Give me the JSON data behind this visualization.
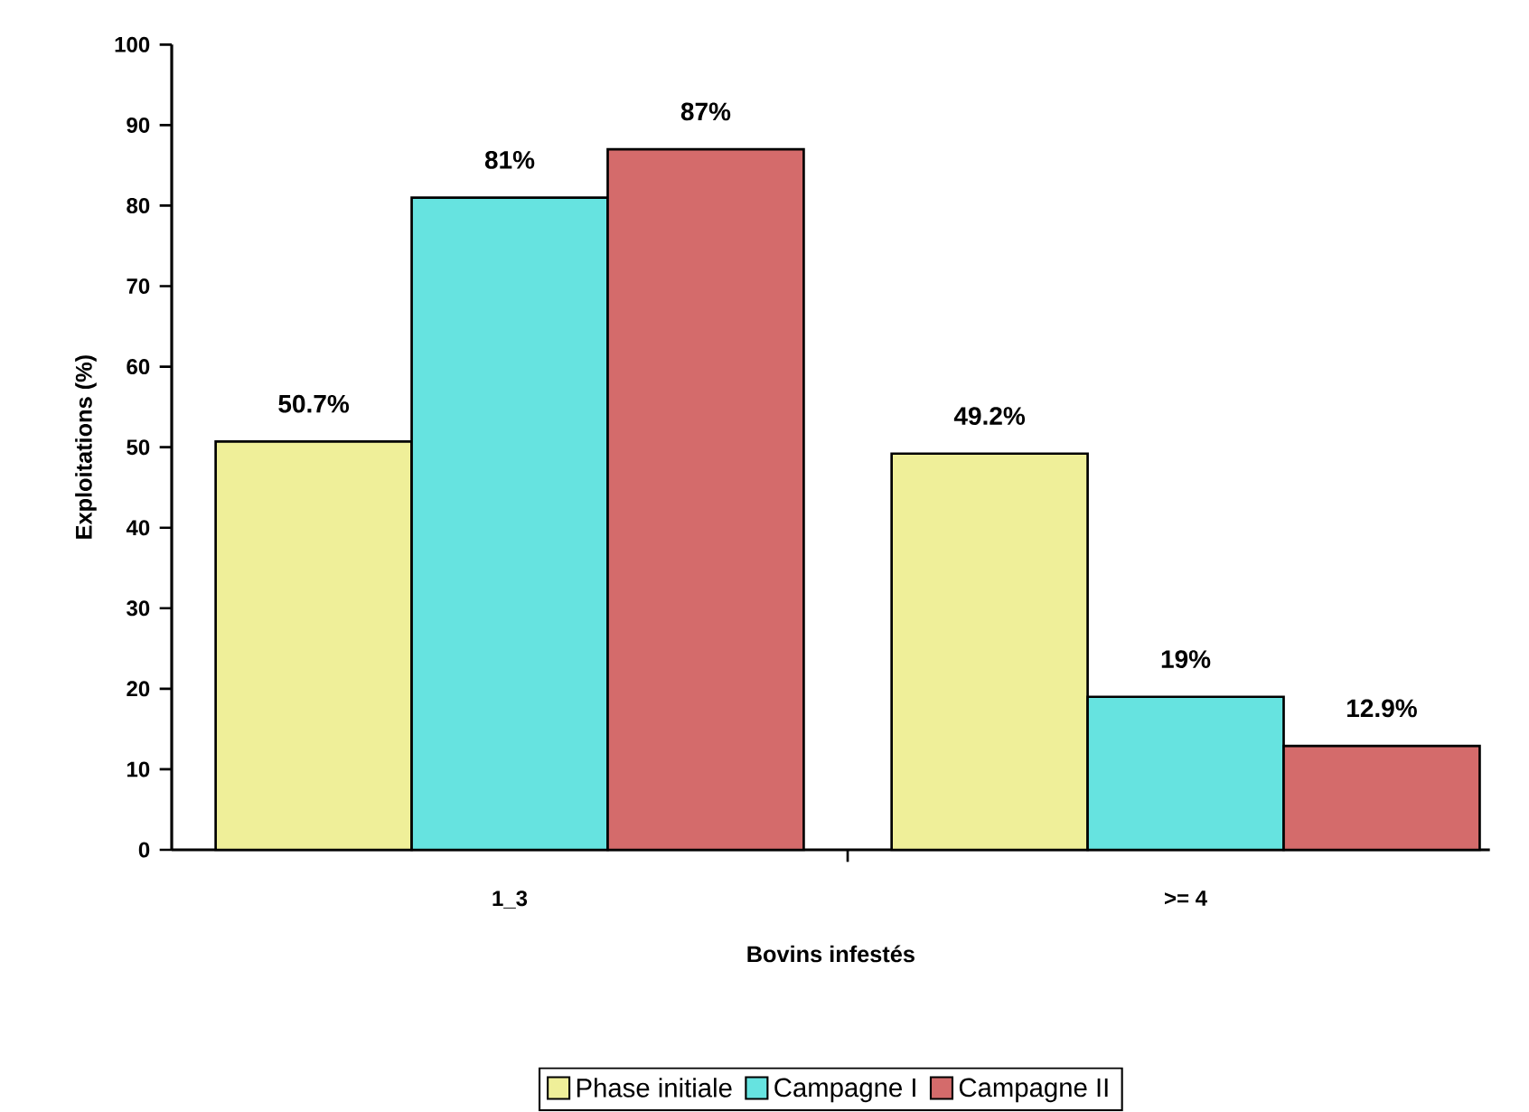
{
  "chart_data": {
    "type": "bar",
    "xlabel": "Bovins infestés",
    "ylabel": "Exploitations (%)",
    "categories": [
      "1_3",
      ">= 4"
    ],
    "series": [
      {
        "name": "Phase initiale",
        "color": "#efef99",
        "values": [
          50.7,
          49.2
        ],
        "value_labels": [
          "50.7%",
          "49.2%"
        ]
      },
      {
        "name": "Campagne I",
        "color": "#66e3e0",
        "values": [
          81,
          19
        ],
        "value_labels": [
          "81%",
          "19%"
        ]
      },
      {
        "name": "Campagne II",
        "color": "#d46b6b",
        "values": [
          87,
          12.9
        ],
        "value_labels": [
          "87%",
          "12.9%"
        ]
      }
    ],
    "ylim": [
      0,
      100
    ],
    "yticks": [
      0,
      10,
      20,
      30,
      40,
      50,
      60,
      70,
      80,
      90,
      100
    ],
    "grid": false,
    "legend": "bottom"
  }
}
